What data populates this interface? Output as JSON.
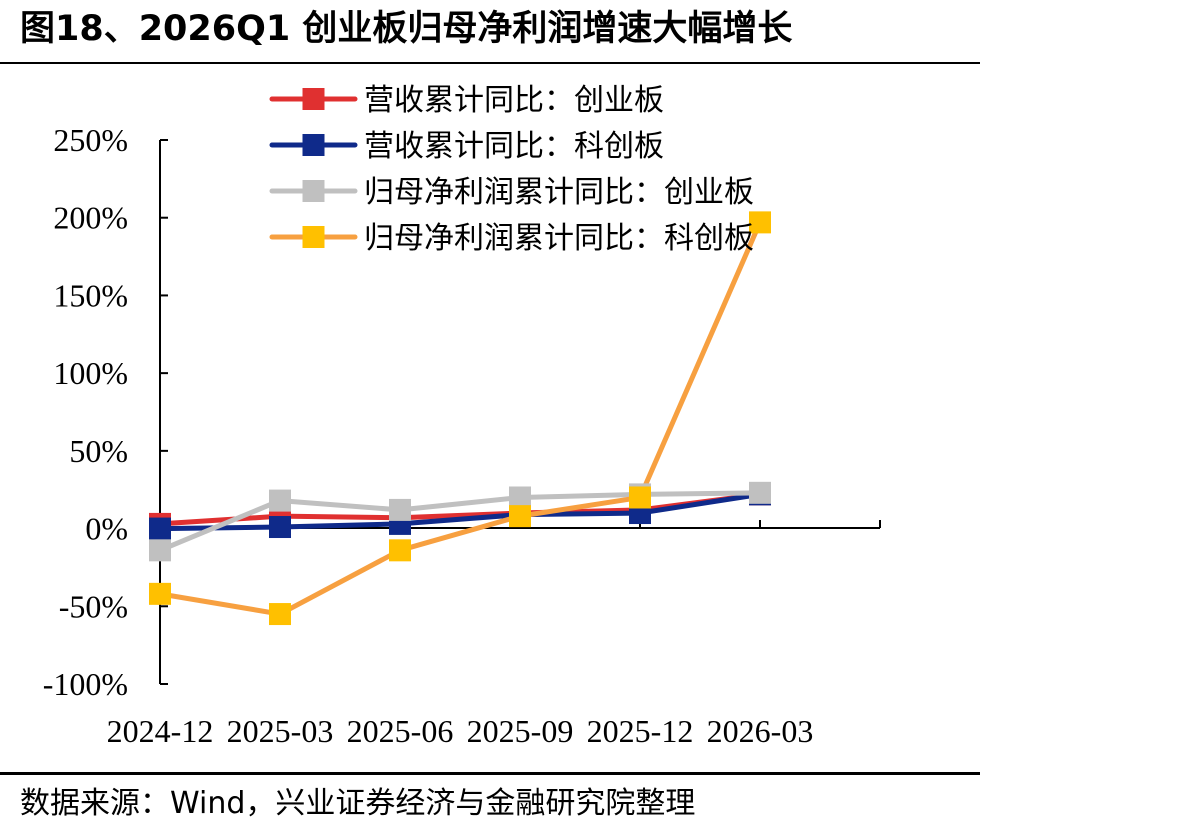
{
  "header": {
    "title": "图18、2026Q1 创业板归母净利润增速大幅增长"
  },
  "footer": {
    "source": "数据来源：Wind，兴业证券经济与金融研究院整理"
  },
  "chart_data": {
    "type": "line",
    "title": "图18、2026Q1 创业板归母净利润增速大幅增长",
    "xlabel": "",
    "ylabel": "",
    "categories": [
      "2024-12",
      "2025-03",
      "2025-06",
      "2025-09",
      "2025-12",
      "2026-03"
    ],
    "ylim": [
      -100,
      250
    ],
    "yticks": [
      -100,
      -50,
      0,
      50,
      100,
      150,
      200,
      250
    ],
    "ytick_labels": [
      "-100%",
      "-50%",
      "0%",
      "50%",
      "100%",
      "150%",
      "200%",
      "250%"
    ],
    "grid": false,
    "legend_position": "top",
    "series": [
      {
        "name": "营收累计同比：创业板",
        "color": "#e03030",
        "marker_color": "#e03030",
        "values": [
          3,
          8,
          7,
          10,
          12,
          22
        ]
      },
      {
        "name": "营收累计同比：科创板",
        "color": "#0f2a8a",
        "marker_color": "#0f2a8a",
        "values": [
          0,
          1,
          3,
          9,
          10,
          22
        ]
      },
      {
        "name": "归母净利润累计同比：创业板",
        "color": "#c0c0c0",
        "marker_color": "#c0c0c0",
        "values": [
          -14,
          18,
          12,
          20,
          22,
          23
        ]
      },
      {
        "name": "归母净利润累计同比：科创板",
        "color": "#f7a040",
        "marker_color": "#ffc000",
        "values": [
          -42,
          -55,
          -14,
          8,
          20,
          197
        ]
      }
    ]
  }
}
